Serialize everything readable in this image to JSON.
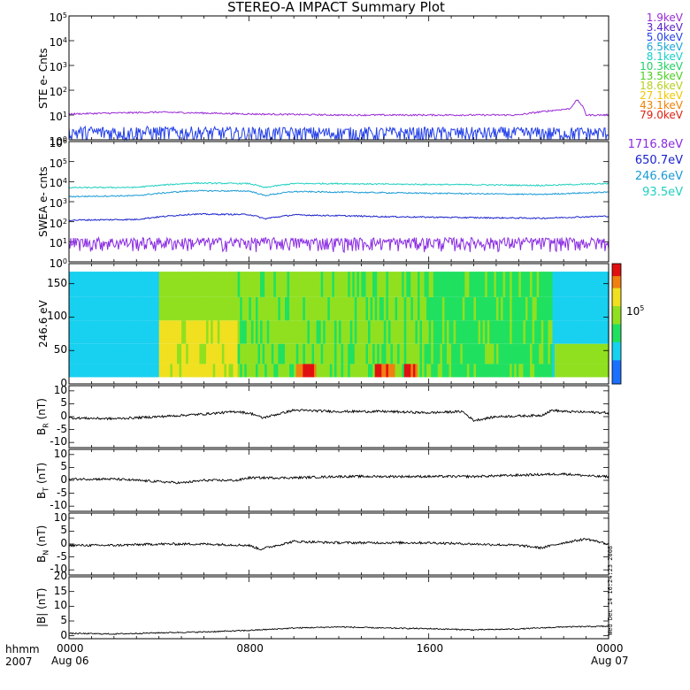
{
  "title": "STEREO-A IMPACT Summary Plot",
  "ste_legend": {
    "labels": [
      "1.9keV",
      "3.4keV",
      "5.0keV",
      "6.5keV",
      "8.1keV",
      "10.3keV",
      "13.5keV",
      "18.6keV",
      "27.1keV",
      "43.1keV",
      "79.0keV"
    ],
    "colors": [
      "#9a2bd6",
      "#5a22c8",
      "#2440e8",
      "#1aa6d6",
      "#14d0c8",
      "#20d060",
      "#4ad020",
      "#b8d020",
      "#f0c800",
      "#f08000",
      "#e02010"
    ]
  },
  "swea_legend": {
    "labels": [
      "1716.8eV",
      "650.7eV",
      "246.6eV",
      "93.5eV"
    ],
    "colors": [
      "#8a2be2",
      "#1a22cc",
      "#1a9ad6",
      "#20d0c0"
    ]
  },
  "x_axis": {
    "corner_top": "hhmm",
    "corner_bottom": "2007",
    "ticks": [
      {
        "hhmm": "0000",
        "date": "Aug 06"
      },
      {
        "hhmm": "0800",
        "date": ""
      },
      {
        "hhmm": "1600",
        "date": ""
      },
      {
        "hhmm": "0000",
        "date": "Aug 07"
      }
    ]
  },
  "side_text": "Wed Dec 14 16:24:23 2008",
  "colorbar_label": "10^5",
  "chart_data": [
    {
      "type": "line",
      "panel": "ste",
      "ylabel": "STE e- Cnts",
      "yscale": "log",
      "ylim": [
        1,
        100000
      ],
      "yticks": [
        "10^0",
        "10^1",
        "10^2",
        "10^3",
        "10^4",
        "10^5"
      ],
      "x_hours": [
        0,
        4,
        8,
        12,
        16,
        20,
        22.3,
        22.6,
        23,
        24
      ],
      "series": [
        {
          "name": "1.9keV",
          "values": [
            11,
            13,
            11,
            10,
            10,
            10,
            18,
            40,
            10,
            10
          ]
        },
        {
          "name": "5.0keV",
          "values": [
            1.3,
            1.3,
            1.2,
            1.2,
            1.2,
            1.2,
            1.2,
            1.2,
            1.2,
            1.2
          ]
        }
      ]
    },
    {
      "type": "line",
      "panel": "swea",
      "ylabel": "SWEA e- cnts",
      "yscale": "log",
      "ylim": [
        1,
        1000000
      ],
      "yticks": [
        "10^0",
        "10^1",
        "10^2",
        "10^3",
        "10^4",
        "10^5",
        "10^6"
      ],
      "x_hours": [
        0,
        3,
        5.5,
        8,
        8.7,
        10,
        12,
        14,
        18,
        21,
        24
      ],
      "series": [
        {
          "name": "93.5eV",
          "values": [
            5000,
            5200,
            8500,
            8000,
            5000,
            8000,
            8000,
            7500,
            7000,
            6500,
            8000
          ]
        },
        {
          "name": "246.6eV",
          "values": [
            1800,
            2000,
            3500,
            3400,
            2000,
            3200,
            3000,
            2800,
            2500,
            2300,
            3000
          ]
        },
        {
          "name": "650.7eV",
          "values": [
            120,
            130,
            240,
            230,
            140,
            220,
            200,
            180,
            160,
            150,
            190
          ]
        },
        {
          "name": "1716.8eV",
          "values": [
            6,
            6,
            6,
            6,
            6,
            6,
            6,
            6,
            6,
            6,
            6
          ]
        }
      ]
    },
    {
      "type": "heatmap",
      "panel": "pad",
      "ylabel": "246.6 eV",
      "ylim": [
        0,
        180
      ],
      "yticks": [
        0,
        50,
        100,
        150
      ],
      "colorbar_tick": "10^5"
    },
    {
      "type": "line",
      "panel": "br",
      "ylabel": "B_R (nT)",
      "ylim": [
        -12,
        12
      ],
      "yticks": [
        -10,
        -5,
        0,
        5,
        10
      ],
      "x": [
        0,
        2,
        4,
        6,
        7.5,
        8.2,
        8.6,
        10,
        12,
        14,
        16,
        17.5,
        18,
        19,
        21,
        21.5,
        22,
        24
      ],
      "values": [
        -0.5,
        -0.8,
        0,
        1,
        2,
        1,
        -0.5,
        2.5,
        2,
        2,
        1.5,
        2,
        -1.5,
        0,
        0.5,
        2.5,
        2,
        1.5
      ]
    },
    {
      "type": "line",
      "panel": "bt",
      "ylabel": "B_T (nT)",
      "ylim": [
        -12,
        12
      ],
      "yticks": [
        -10,
        -5,
        0,
        5,
        10
      ],
      "x": [
        0,
        2,
        4,
        5,
        6,
        7.5,
        8,
        10,
        12,
        14,
        16,
        18,
        20,
        22,
        23.5,
        24
      ],
      "values": [
        0.5,
        0.5,
        -0.5,
        -1,
        0,
        0,
        1,
        1,
        1.5,
        1.5,
        1.5,
        1.5,
        2,
        2.5,
        1.5,
        1.5
      ]
    },
    {
      "type": "line",
      "panel": "bn",
      "ylabel": "B_N (nT)",
      "ylim": [
        -12,
        12
      ],
      "yticks": [
        -10,
        -5,
        0,
        5,
        10
      ],
      "x": [
        0,
        2,
        4,
        6,
        8,
        8.5,
        10,
        12,
        14,
        16,
        18,
        20,
        21,
        22,
        23,
        24
      ],
      "values": [
        -0.5,
        -0.5,
        0,
        0,
        -0.5,
        -2,
        1,
        0.5,
        0.5,
        0.5,
        0,
        -0.5,
        -1.5,
        0.5,
        2,
        0
      ]
    },
    {
      "type": "line",
      "panel": "bmag",
      "ylabel": "|B| (nT)",
      "ylim": [
        -1,
        20
      ],
      "yticks": [
        0,
        5,
        10,
        15,
        20
      ],
      "x": [
        0,
        2,
        4,
        6,
        8,
        10,
        12,
        14,
        16,
        18,
        20,
        22,
        24
      ],
      "values": [
        0.8,
        0.6,
        1,
        1.3,
        1.8,
        2.6,
        3,
        2.6,
        2.4,
        2,
        2.3,
        3,
        3.2
      ]
    }
  ]
}
